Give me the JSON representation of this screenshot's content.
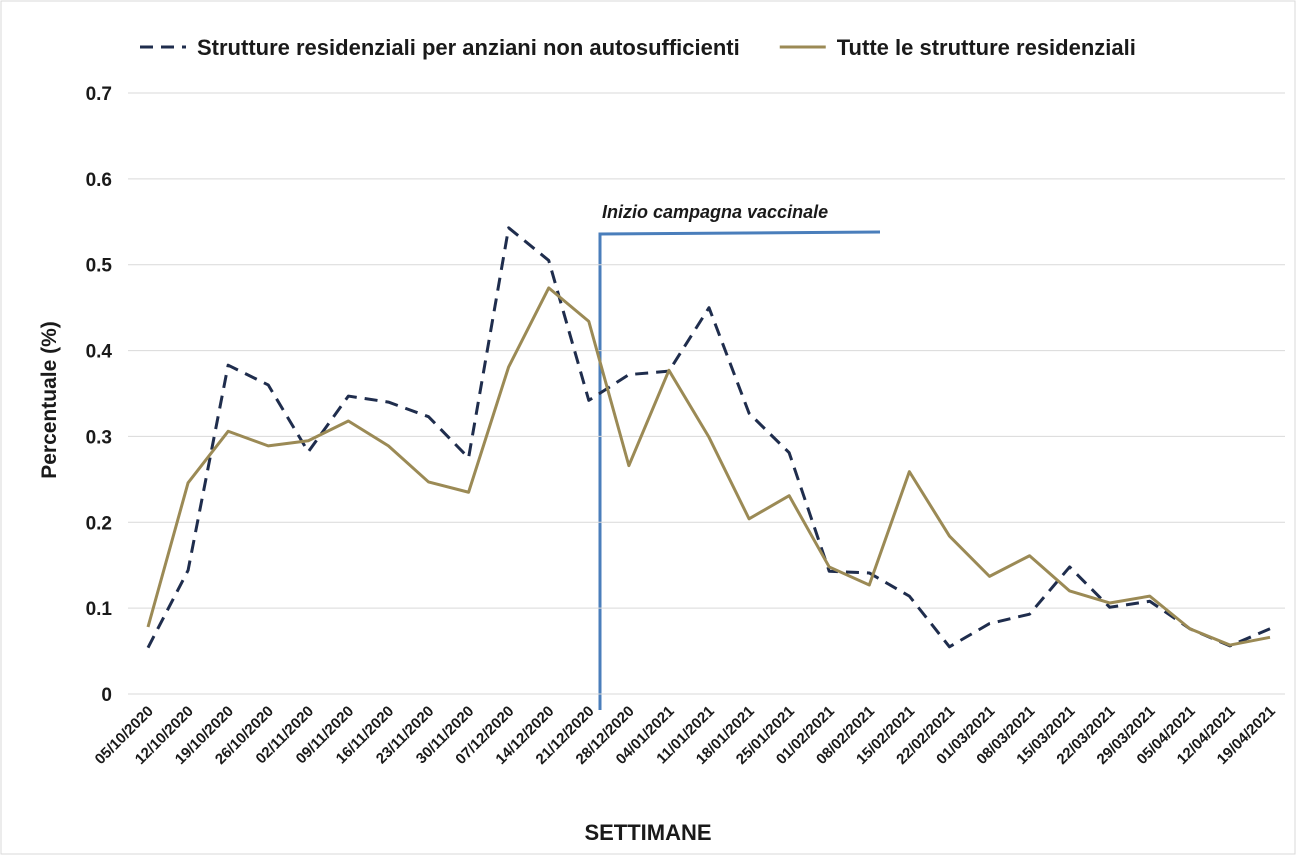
{
  "chart_data": {
    "type": "line",
    "x_label": "SETTIMANE",
    "y_label": "Percentuale (%)",
    "annotation": "Inizio campagna vaccinale",
    "categories": [
      "05/10/2020",
      "12/10/2020",
      "19/10/2020",
      "26/10/2020",
      "02/11/2020",
      "09/11/2020",
      "16/11/2020",
      "23/11/2020",
      "30/11/2020",
      "07/12/2020",
      "14/12/2020",
      "21/12/2020",
      "28/12/2020",
      "04/01/2021",
      "11/01/2021",
      "18/01/2021",
      "25/01/2021",
      "01/02/2021",
      "08/02/2021",
      "15/02/2021",
      "22/02/2021",
      "01/03/2021",
      "08/03/2021",
      "15/03/2021",
      "22/03/2021",
      "29/03/2021",
      "05/04/2021",
      "12/04/2021",
      "19/04/2021"
    ],
    "series": [
      {
        "name": "Strutture residenziali per anziani non autosufficienti",
        "color": "#1f2d4d",
        "dashed": true,
        "values": [
          0.054,
          0.144,
          0.383,
          0.36,
          0.282,
          0.347,
          0.34,
          0.323,
          0.275,
          0.543,
          0.505,
          0.342,
          0.372,
          0.376,
          0.45,
          0.327,
          0.281,
          0.143,
          0.141,
          0.114,
          0.055,
          0.082,
          0.093,
          0.148,
          0.101,
          0.108,
          0.076,
          0.056,
          0.076
        ]
      },
      {
        "name": "Tutte le strutture residenziali",
        "color": "#9b8a55",
        "dashed": false,
        "values": [
          0.078,
          0.246,
          0.306,
          0.289,
          0.295,
          0.318,
          0.289,
          0.247,
          0.235,
          0.381,
          0.473,
          0.434,
          0.266,
          0.377,
          0.299,
          0.204,
          0.231,
          0.148,
          0.127,
          0.259,
          0.184,
          0.137,
          0.161,
          0.12,
          0.106,
          0.114,
          0.076,
          0.057,
          0.066
        ]
      }
    ],
    "ylim": [
      0,
      0.7
    ],
    "yticks": [
      0,
      0.1,
      0.2,
      0.3,
      0.4,
      0.5,
      0.6,
      0.7
    ],
    "grid": true,
    "legend": "top"
  }
}
